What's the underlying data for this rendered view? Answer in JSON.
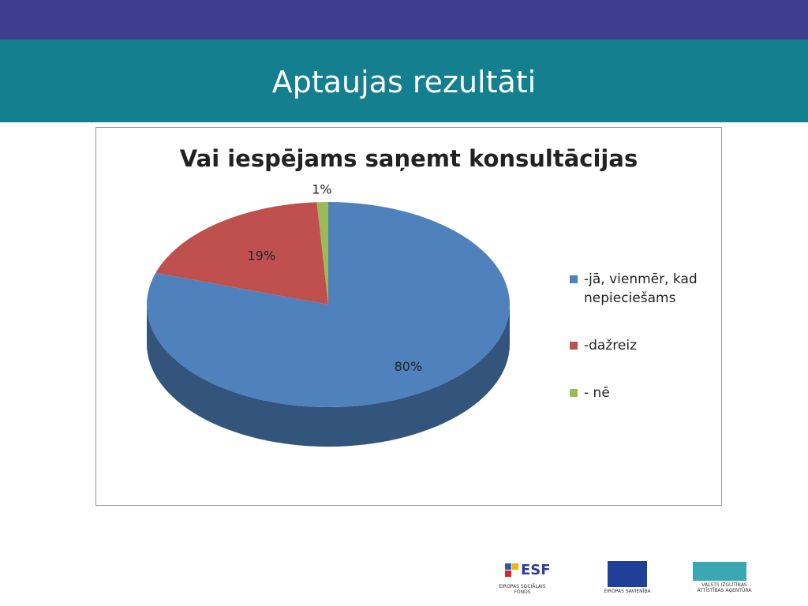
{
  "slide": {
    "title": "Aptaujas rezultāti"
  },
  "chart_data": {
    "type": "pie3d",
    "title": "Vai iespējams saņemt konsultācijas",
    "categories": [
      "-jā, vienmēr, kad nepieciešams",
      "-dažreiz",
      "- nē"
    ],
    "values": [
      80,
      19,
      1
    ],
    "value_labels": [
      "80%",
      "19%",
      "1%"
    ],
    "colors": [
      "#4f81bd",
      "#c0504d",
      "#9bbb59"
    ],
    "legend": "right"
  },
  "logos": {
    "esf": "ESF",
    "esf_caption": "EIROPAS SOCIĀLAIS FONDS",
    "eu_caption": "EIROPAS SAVIENĪBA",
    "agency_caption": "VALSTS IZGLĪTĪBAS ATTĪSTĪBAS AĢENTŪRA"
  }
}
